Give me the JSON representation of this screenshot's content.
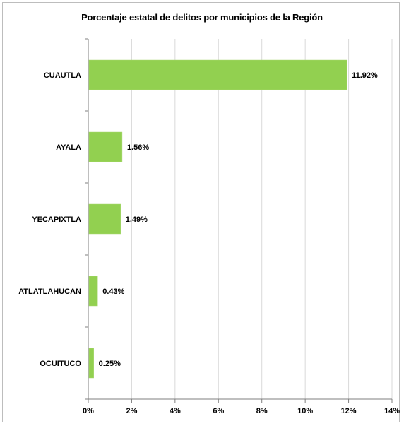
{
  "chart_data": {
    "type": "bar",
    "orientation": "horizontal",
    "title": "Porcentaje estatal de delitos por municipios de la Región",
    "categories": [
      "CUAUTLA",
      "AYALA",
      "YECAPIXTLA",
      "ATLATLAHUCAN",
      "OCUITUCO"
    ],
    "values": [
      11.92,
      1.56,
      1.49,
      0.43,
      0.25
    ],
    "value_labels": [
      "11.92%",
      "1.56%",
      "1.49%",
      "0.43%",
      "0.25%"
    ],
    "xlim": [
      0,
      14
    ],
    "x_ticks": [
      0,
      2,
      4,
      6,
      8,
      10,
      12,
      14
    ],
    "x_tick_labels": [
      "0%",
      "2%",
      "4%",
      "6%",
      "8%",
      "10%",
      "12%",
      "14%"
    ],
    "grid": "vertical",
    "legend": "none",
    "bar_color": "#92d050",
    "grid_color": "#d9d9d9"
  }
}
